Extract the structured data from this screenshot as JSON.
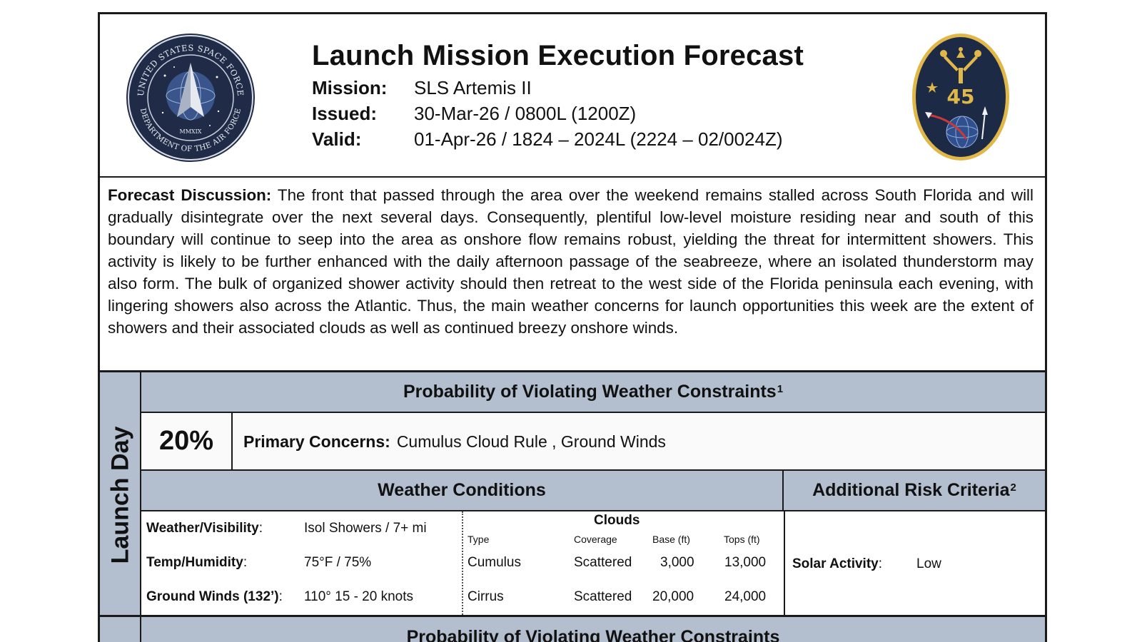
{
  "header": {
    "title": "Launch Mission Execution Forecast",
    "mission_label": "Mission:",
    "mission_value": "SLS Artemis II",
    "issued_label": "Issued:",
    "issued_value": "30-Mar-26 / 0800L (1200Z)",
    "valid_label": "Valid:",
    "valid_value": "01-Apr-26 / 1824 – 2024L (2224 – 02/0024Z)"
  },
  "logos": {
    "left_seal_text_top": "UNITED STATES SPACE FORCE",
    "left_seal_text_bottom": "DEPARTMENT OF THE AIR FORCE",
    "left_seal_year": "MMXIX",
    "right_seal_number": "45"
  },
  "discussion": {
    "label": "Forecast Discussion:",
    "text": "The front that passed through the area over the weekend remains stalled across South Florida and will gradually disintegrate over the next several days. Consequently, plentiful low-level moisture residing near and south of this boundary will continue to seep into the area as onshore flow remains robust, yielding the threat for intermittent showers. This activity is likely to be further enhanced with the daily afternoon passage of the seabreeze, where an isolated thunderstorm may also form. The bulk of organized shower activity should then retreat to the west side of the Florida peninsula each evening, with lingering showers also across the Atlantic. Thus, the main weather concerns for launch opportunities this week are the extent of showers and their associated clouds as well as continued breezy onshore winds."
  },
  "launch_day": {
    "side_label": "Launch Day",
    "probability_header": "Probability of Violating Weather Constraints",
    "probability_footnote": "1",
    "probability_value": "20%",
    "primary_concerns_label": "Primary Concerns:",
    "primary_concerns_value": "Cumulus Cloud Rule , Ground Winds",
    "weather_conditions_header": "Weather Conditions",
    "additional_risk_header": "Additional Risk Criteria",
    "additional_risk_footnote": "2",
    "conditions": [
      {
        "label": "Weather/Visibility",
        "value": "Isol Showers / 7+ mi"
      },
      {
        "label": "Temp/Humidity",
        "value": "75°F / 75%"
      },
      {
        "label": "Ground Winds (132’)",
        "value": "110° 15 - 20 knots"
      }
    ],
    "clouds": {
      "header": "Clouds",
      "columns": [
        "Type",
        "Coverage",
        "Base (ft)",
        "Tops (ft)"
      ],
      "rows": [
        {
          "type": "Cumulus",
          "coverage": "Scattered",
          "base": "3,000",
          "tops": "13,000"
        },
        {
          "type": "Cirrus",
          "coverage": "Scattered",
          "base": "20,000",
          "tops": "24,000"
        }
      ]
    },
    "solar_activity_label": "Solar Activity",
    "solar_activity_value": "Low"
  },
  "next_section": {
    "header_partial": "Probability of Violating Weather Constraints"
  },
  "colors": {
    "band": "#b3bfcf",
    "border": "#1a1a1a",
    "left_seal_navy": "#1f2b47",
    "right_seal_navy": "#1d2a46",
    "right_seal_gold": "#e0b84a"
  }
}
